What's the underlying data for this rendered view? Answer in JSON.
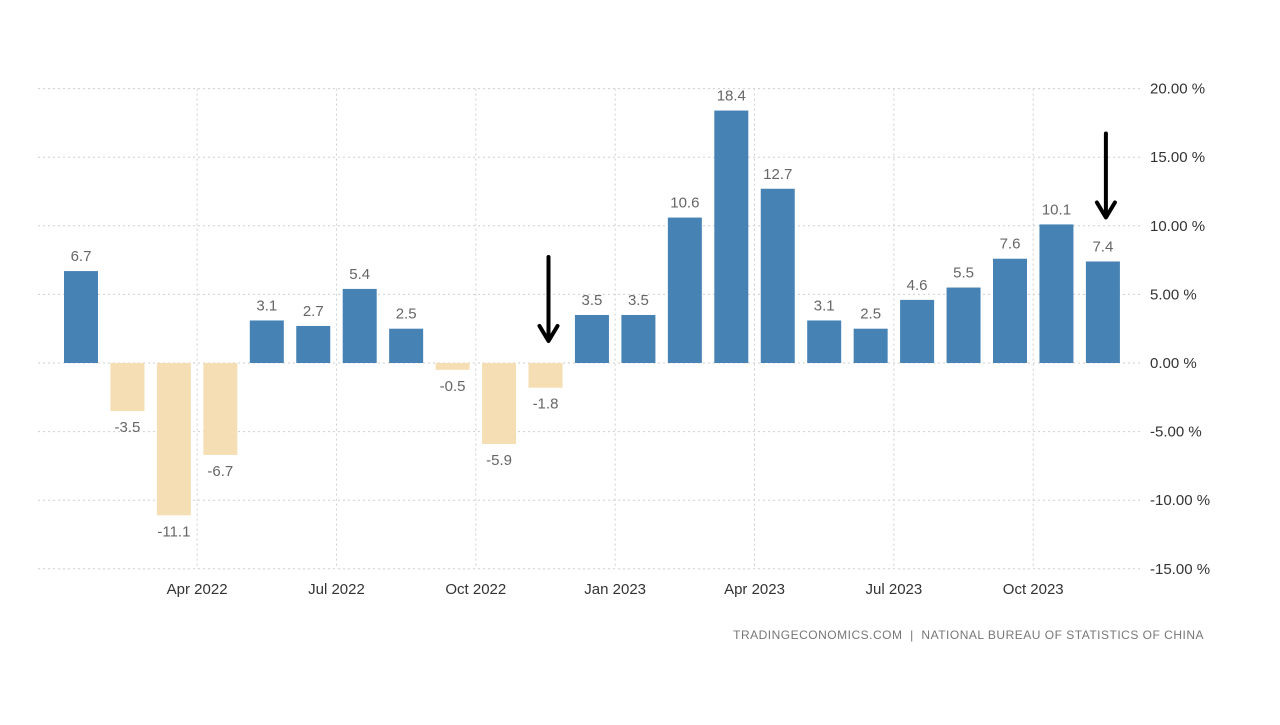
{
  "chart_data": {
    "type": "bar",
    "categories": [
      "Feb 2022",
      "Mar 2022",
      "Apr 2022",
      "May 2022",
      "Jun 2022",
      "Jul 2022",
      "Aug 2022",
      "Sep 2022",
      "Oct 2022",
      "Nov 2022",
      "Dec 2022",
      "Jan 2023",
      "Feb 2023",
      "Mar 2023",
      "Apr 2023",
      "May 2023",
      "Jun 2023",
      "Jul 2023",
      "Aug 2023",
      "Sep 2023",
      "Oct 2023",
      "Nov 2023",
      "Dec 2023"
    ],
    "values": [
      6.7,
      -3.5,
      -11.1,
      -6.7,
      3.1,
      2.7,
      5.4,
      2.5,
      -0.5,
      -5.9,
      -1.8,
      3.5,
      3.5,
      10.6,
      18.4,
      12.7,
      3.1,
      2.5,
      4.6,
      5.5,
      7.6,
      10.1,
      7.4
    ],
    "data_labels": [
      "6.7",
      "-3.5",
      "-11.1",
      "-6.7",
      "3.1",
      "2.7",
      "5.4",
      "2.5",
      "-0.5",
      "-5.9",
      "-1.8",
      "3.5",
      "3.5",
      "10.6",
      "18.4",
      "12.7",
      "3.1",
      "2.5",
      "4.6",
      "5.5",
      "7.6",
      "10.1",
      "7.4"
    ],
    "x_tick_labels": [
      {
        "category": "Apr 2022",
        "label": "Apr 2022"
      },
      {
        "category": "Jul 2022",
        "label": "Jul 2022"
      },
      {
        "category": "Oct 2022",
        "label": "Oct 2022"
      },
      {
        "category": "Jan 2023",
        "label": "Jan 2023"
      },
      {
        "category": "Apr 2023",
        "label": "Apr 2023"
      },
      {
        "category": "Jul 2023",
        "label": "Jul 2023"
      },
      {
        "category": "Oct 2023",
        "label": "Oct 2023"
      }
    ],
    "y_ticks": [
      20,
      15,
      10,
      5,
      0,
      -5,
      -10,
      -15
    ],
    "y_tick_labels": [
      "20.00 %",
      "15.00 %",
      "10.00 %",
      "5.00 %",
      "0.00 %",
      "-5.00 %",
      "-10.00 %",
      "-15.00 %"
    ],
    "ylim": [
      -15,
      20
    ],
    "y_axis_position": "right",
    "grid": true,
    "colors": {
      "positive": "#4682b4",
      "negative": "#f5deb3",
      "arrow": "#000000"
    },
    "annotations": [
      {
        "type": "arrow",
        "target": "Dec 2022",
        "direction": "down"
      },
      {
        "type": "arrow",
        "target": "Dec 2023",
        "direction": "down"
      }
    ],
    "title": "",
    "xlabel": "",
    "ylabel": ""
  },
  "source_text": "TRADINGECONOMICS.COM  |  NATIONAL BUREAU OF STATISTICS OF CHINA"
}
